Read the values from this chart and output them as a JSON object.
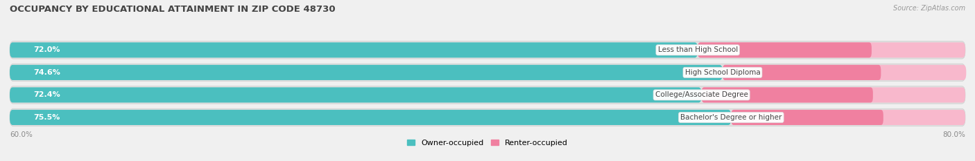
{
  "title": "OCCUPANCY BY EDUCATIONAL ATTAINMENT IN ZIP CODE 48730",
  "source": "Source: ZipAtlas.com",
  "categories": [
    "Less than High School",
    "High School Diploma",
    "College/Associate Degree",
    "Bachelor's Degree or higher"
  ],
  "owner_pct": [
    72.0,
    74.6,
    72.4,
    75.5
  ],
  "renter_pct": [
    28.0,
    25.5,
    27.6,
    24.5
  ],
  "owner_color": "#4BBFBF",
  "renter_color": "#F080A0",
  "renter_color_light": "#F8B8CC",
  "owner_label": "Owner-occupied",
  "renter_label": "Renter-occupied",
  "background_color": "#f0f0f0",
  "bar_bg_color": "#e0e0e0",
  "x_left_label": "60.0%",
  "x_right_label": "80.0%",
  "title_fontsize": 9.5,
  "bar_height": 0.68,
  "xlim": [
    0,
    100
  ]
}
